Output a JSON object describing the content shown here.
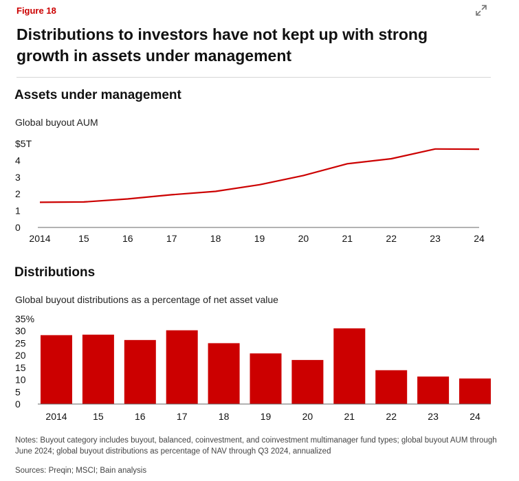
{
  "figure_label": "Figure 18",
  "title": "Distributions to investors have not kept up with strong growth in assets under management",
  "colors": {
    "accent": "#cc0000",
    "bar": "#cc0000",
    "line": "#cc0000",
    "axis": "#666666"
  },
  "icons": {
    "expand": "expand-arrows-icon"
  },
  "sections": {
    "aum": {
      "heading": "Assets under management",
      "subtitle": "Global buyout AUM"
    },
    "dist": {
      "heading": "Distributions",
      "subtitle": "Global buyout distributions as a percentage of net asset value"
    }
  },
  "chart_data": [
    {
      "type": "line",
      "title": "Assets under management",
      "subtitle": "Global buyout AUM",
      "x": [
        "2014",
        "15",
        "16",
        "17",
        "18",
        "19",
        "20",
        "21",
        "22",
        "23",
        "24"
      ],
      "y_ticks": [
        "0",
        "1",
        "2",
        "3",
        "4",
        "$5T"
      ],
      "ylim": [
        0,
        5
      ],
      "series": [
        {
          "values": [
            1.5,
            1.52,
            1.7,
            1.95,
            2.15,
            2.55,
            3.1,
            3.8,
            4.1,
            4.68,
            4.67
          ]
        }
      ],
      "grid": false
    },
    {
      "type": "bar",
      "title": "Distributions",
      "subtitle": "Global buyout distributions as a percentage of net asset value",
      "categories": [
        "2014",
        "15",
        "16",
        "17",
        "18",
        "19",
        "20",
        "21",
        "22",
        "23",
        "24"
      ],
      "y_ticks": [
        "0",
        "5",
        "10",
        "15",
        "20",
        "25",
        "30",
        "35%"
      ],
      "ylim": [
        0,
        35
      ],
      "values": [
        28.3,
        28.5,
        26.3,
        30.3,
        25.0,
        20.8,
        18.1,
        31.1,
        13.9,
        11.3,
        10.5
      ],
      "grid": false
    }
  ],
  "notes": "Notes: Buyout category includes buyout, balanced, coinvestment, and coinvestment multimanager fund types; global buyout AUM through June 2024; global buyout distributions as percentage of NAV through Q3 2024, annualized",
  "sources": "Sources: Preqin; MSCI; Bain analysis"
}
